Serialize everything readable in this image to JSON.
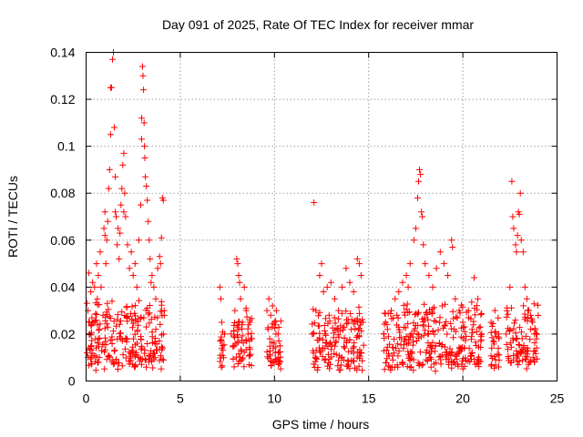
{
  "chart_data": {
    "type": "scatter",
    "title": "Day 091 of 2025, Rate Of TEC Index for receiver mmar",
    "xlabel": "GPS time / hours",
    "ylabel": "ROTI / TECUs",
    "xlim": [
      0,
      25
    ],
    "ylim": [
      0,
      0.14
    ],
    "xticks": [
      "0",
      "5",
      "10",
      "15",
      "20",
      "25"
    ],
    "xtick_values": [
      0,
      5,
      10,
      15,
      20,
      25
    ],
    "yticks": [
      "0",
      "0.02",
      "0.04",
      "0.06",
      "0.08",
      "0.1",
      "0.12",
      "0.14"
    ],
    "ytick_values": [
      0,
      0.02,
      0.04,
      0.06,
      0.08,
      0.1,
      0.12,
      0.14
    ],
    "grid": true,
    "marker": "plus",
    "color": "#ff0000",
    "series": [
      {
        "points": [
          [
            0.05,
            0.012
          ],
          [
            0.1,
            0.03
          ],
          [
            0.15,
            0.046
          ],
          [
            0.2,
            0.02
          ],
          [
            0.25,
            0.038
          ],
          [
            0.3,
            0.015
          ],
          [
            0.35,
            0.042
          ],
          [
            0.4,
            0.025
          ],
          [
            0.5,
            0.018
          ],
          [
            0.55,
            0.05
          ],
          [
            0.6,
            0.035
          ],
          [
            0.7,
            0.022
          ],
          [
            0.75,
            0.055
          ],
          [
            0.8,
            0.04
          ],
          [
            0.9,
            0.028
          ],
          [
            0.95,
            0.065
          ],
          [
            1.0,
            0.072
          ],
          [
            1.05,
            0.05
          ],
          [
            1.1,
            0.06
          ],
          [
            1.15,
            0.068
          ],
          [
            1.2,
            0.082
          ],
          [
            1.25,
            0.09
          ],
          [
            1.3,
            0.105
          ],
          [
            1.35,
            0.125
          ],
          [
            1.4,
            0.137
          ],
          [
            1.45,
            0.14
          ],
          [
            1.5,
            0.108
          ],
          [
            1.55,
            0.087
          ],
          [
            1.6,
            0.07
          ],
          [
            1.65,
            0.058
          ],
          [
            1.7,
            0.065
          ],
          [
            1.75,
            0.052
          ],
          [
            1.8,
            0.063
          ],
          [
            1.85,
            0.075
          ],
          [
            1.9,
            0.082
          ],
          [
            1.95,
            0.092
          ],
          [
            2.0,
            0.097
          ],
          [
            2.05,
            0.08
          ],
          [
            2.1,
            0.07
          ],
          [
            2.2,
            0.058
          ],
          [
            2.3,
            0.048
          ],
          [
            2.4,
            0.055
          ],
          [
            2.5,
            0.045
          ],
          [
            2.6,
            0.05
          ],
          [
            2.7,
            0.04
          ],
          [
            2.8,
            0.06
          ],
          [
            2.9,
            0.075
          ],
          [
            2.95,
            0.112
          ],
          [
            3.0,
            0.134
          ],
          [
            3.02,
            0.13
          ],
          [
            3.05,
            0.124
          ],
          [
            3.08,
            0.11
          ],
          [
            3.1,
            0.1
          ],
          [
            3.12,
            0.095
          ],
          [
            3.15,
            0.087
          ],
          [
            3.2,
            0.083
          ],
          [
            3.25,
            0.077
          ],
          [
            3.3,
            0.068
          ],
          [
            3.35,
            0.06
          ],
          [
            3.4,
            0.052
          ],
          [
            3.5,
            0.045
          ],
          [
            3.6,
            0.04
          ],
          [
            3.7,
            0.035
          ],
          [
            3.8,
            0.048
          ],
          [
            3.9,
            0.053
          ],
          [
            3.95,
            0.05
          ],
          [
            4.0,
            0.061
          ],
          [
            4.05,
            0.078
          ],
          [
            4.1,
            0.077
          ],
          [
            4.15,
            0.03
          ],
          [
            1.0,
            0.062
          ],
          [
            1.3,
            0.125
          ],
          [
            2.95,
            0.103
          ],
          [
            1.55,
            0.072
          ],
          [
            2.0,
            0.072
          ],
          [
            0.45,
            0.04
          ],
          [
            0.65,
            0.045
          ],
          [
            3.45,
            0.042
          ],
          [
            3.7,
            0.022
          ],
          [
            4.1,
            0.02
          ],
          [
            7.1,
            0.04
          ],
          [
            7.15,
            0.035
          ],
          [
            7.2,
            0.025
          ],
          [
            7.25,
            0.015
          ],
          [
            7.3,
            0.01
          ],
          [
            7.35,
            0.02
          ],
          [
            7.9,
            0.03
          ],
          [
            8.0,
            0.052
          ],
          [
            8.05,
            0.05
          ],
          [
            8.1,
            0.045
          ],
          [
            8.2,
            0.035
          ],
          [
            8.3,
            0.025
          ],
          [
            8.4,
            0.04
          ],
          [
            8.5,
            0.03
          ],
          [
            8.6,
            0.02
          ],
          [
            8.7,
            0.025
          ],
          [
            8.8,
            0.018
          ],
          [
            7.7,
            0.02
          ],
          [
            7.8,
            0.015
          ],
          [
            8.15,
            0.042
          ],
          [
            9.6,
            0.03
          ],
          [
            9.7,
            0.035
          ],
          [
            9.8,
            0.028
          ],
          [
            9.9,
            0.032
          ],
          [
            10.0,
            0.025
          ],
          [
            10.1,
            0.03
          ],
          [
            10.2,
            0.02
          ],
          [
            10.3,
            0.015
          ],
          [
            9.75,
            0.018
          ],
          [
            10.05,
            0.012
          ],
          [
            12.1,
            0.076
          ],
          [
            12.0,
            0.02
          ],
          [
            12.2,
            0.03
          ],
          [
            12.4,
            0.045
          ],
          [
            12.5,
            0.05
          ],
          [
            12.6,
            0.038
          ],
          [
            12.8,
            0.04
          ],
          [
            13.0,
            0.042
          ],
          [
            13.2,
            0.035
          ],
          [
            13.4,
            0.03
          ],
          [
            13.6,
            0.04
          ],
          [
            13.8,
            0.048
          ],
          [
            14.0,
            0.042
          ],
          [
            14.2,
            0.038
          ],
          [
            14.4,
            0.052
          ],
          [
            14.5,
            0.05
          ],
          [
            14.6,
            0.045
          ],
          [
            14.7,
            0.025
          ],
          [
            12.9,
            0.028
          ],
          [
            13.9,
            0.025
          ],
          [
            15.8,
            0.02
          ],
          [
            15.9,
            0.025
          ],
          [
            16.0,
            0.022
          ],
          [
            16.2,
            0.03
          ],
          [
            16.4,
            0.035
          ],
          [
            16.6,
            0.038
          ],
          [
            16.8,
            0.042
          ],
          [
            17.0,
            0.045
          ],
          [
            17.2,
            0.05
          ],
          [
            17.4,
            0.06
          ],
          [
            17.5,
            0.065
          ],
          [
            17.6,
            0.078
          ],
          [
            17.65,
            0.085
          ],
          [
            17.7,
            0.09
          ],
          [
            17.75,
            0.088
          ],
          [
            17.8,
            0.072
          ],
          [
            17.85,
            0.07
          ],
          [
            17.9,
            0.058
          ],
          [
            18.0,
            0.05
          ],
          [
            18.2,
            0.045
          ],
          [
            18.4,
            0.04
          ],
          [
            18.6,
            0.048
          ],
          [
            18.8,
            0.055
          ],
          [
            19.0,
            0.05
          ],
          [
            19.2,
            0.045
          ],
          [
            19.4,
            0.06
          ],
          [
            19.45,
            0.057
          ],
          [
            19.6,
            0.035
          ],
          [
            19.8,
            0.03
          ],
          [
            20.0,
            0.025
          ],
          [
            20.3,
            0.03
          ],
          [
            20.6,
            0.044
          ],
          [
            20.8,
            0.035
          ],
          [
            21.0,
            0.02
          ],
          [
            21.5,
            0.025
          ],
          [
            21.7,
            0.03
          ],
          [
            21.9,
            0.02
          ],
          [
            22.3,
            0.02
          ],
          [
            22.5,
            0.04
          ],
          [
            22.6,
            0.085
          ],
          [
            22.65,
            0.07
          ],
          [
            22.7,
            0.065
          ],
          [
            22.8,
            0.058
          ],
          [
            22.85,
            0.055
          ],
          [
            22.9,
            0.062
          ],
          [
            22.95,
            0.072
          ],
          [
            23.0,
            0.071
          ],
          [
            23.05,
            0.08
          ],
          [
            23.1,
            0.06
          ],
          [
            23.2,
            0.055
          ],
          [
            23.3,
            0.04
          ],
          [
            23.4,
            0.035
          ],
          [
            23.5,
            0.03
          ],
          [
            23.6,
            0.028
          ],
          [
            23.7,
            0.025
          ],
          [
            23.8,
            0.02
          ],
          [
            23.9,
            0.018
          ],
          [
            17.1,
            0.04
          ],
          [
            18.9,
            0.032
          ],
          [
            16.5,
            0.028
          ]
        ]
      }
    ]
  }
}
